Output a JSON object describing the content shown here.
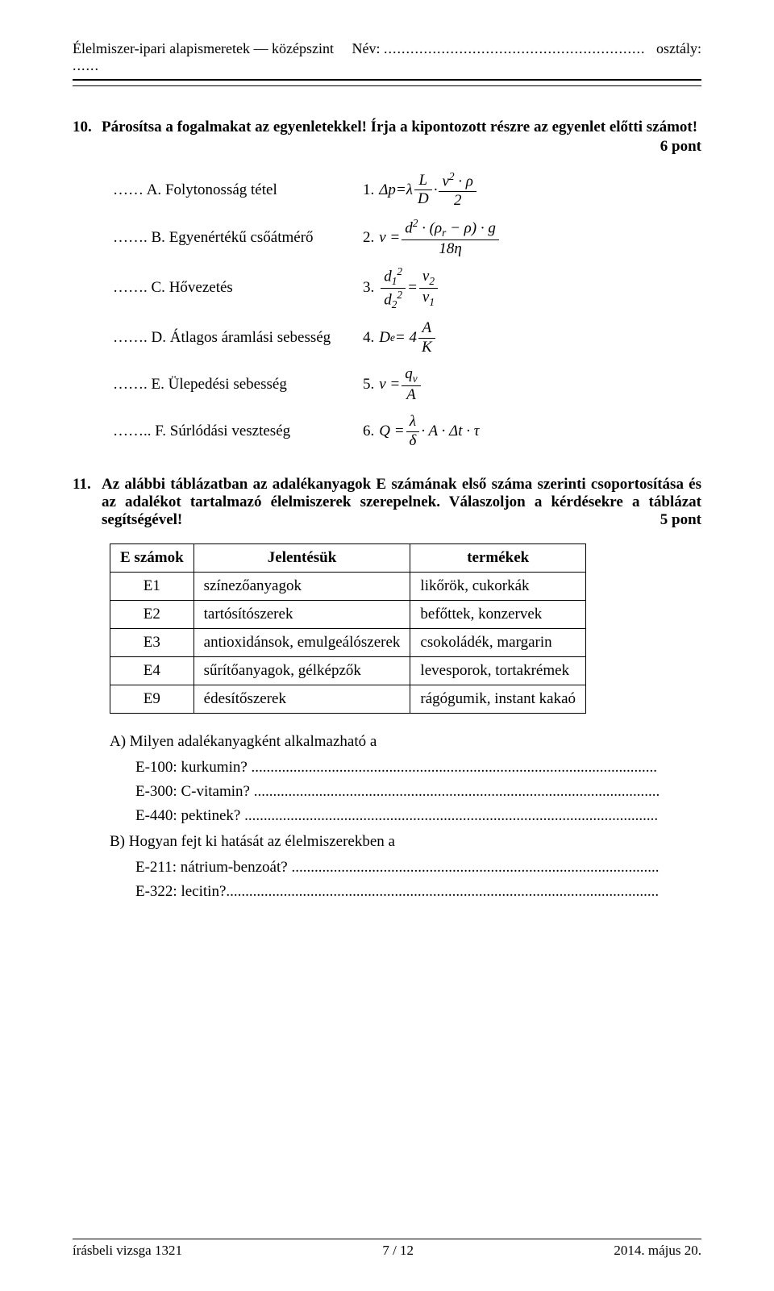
{
  "header": {
    "subject": "Élelmiszer-ipari alapismeretek — középszint",
    "name_label": "Név:",
    "name_dots": "...........................................................",
    "class_label": "osztály:",
    "class_dots": "......"
  },
  "q10": {
    "number": "10.",
    "text": "Párosítsa a fogalmakat az egyenletekkel! Írja a kipontozott részre az egyenlet előtti számot!",
    "points": "6 pont",
    "items": [
      {
        "dots": "……",
        "letter": "A.",
        "label": "Folytonosság tétel",
        "eqnum": "1."
      },
      {
        "dots": "…….",
        "letter": "B.",
        "label": "Egyenértékű csőátmérő",
        "eqnum": "2."
      },
      {
        "dots": "…….",
        "letter": "C.",
        "label": "Hővezetés",
        "eqnum": "3."
      },
      {
        "dots": "…….",
        "letter": "D.",
        "label": "Átlagos áramlási sebesség",
        "eqnum": "4."
      },
      {
        "dots": "…….",
        "letter": "E.",
        "label": "Ülepedési sebesség",
        "eqnum": "5."
      },
      {
        "dots": "……..",
        "letter": "F.",
        "label": "Súrlódási veszteség",
        "eqnum": "6."
      }
    ]
  },
  "q11": {
    "number": "11.",
    "text": "Az alábbi táblázatban az adalékanyagok E számának első száma szerinti csoportosítása és az adalékot tartalmazó élelmiszerek szerepelnek. Válaszoljon a kérdésekre a táblázat segítségével!",
    "points": "5 pont",
    "table": {
      "headers": [
        "E számok",
        "Jelentésük",
        "termékek"
      ],
      "rows": [
        [
          "E1",
          "színezőanyagok",
          "likőrök, cukorkák"
        ],
        [
          "E2",
          "tartósítószerek",
          "befőttek, konzervek"
        ],
        [
          "E3",
          "antioxidánsok, emulgeálószerek",
          "csokoládék, margarin"
        ],
        [
          "E4",
          "sűrítőanyagok, gélképzők",
          "levesporok, tortakrémek"
        ],
        [
          "E9",
          "édesítőszerek",
          "rágógumik, instant kakaó"
        ]
      ]
    },
    "partA": {
      "prompt": "A) Milyen adalékanyagként alkalmazható a",
      "lines": [
        "E-100: kurkumin? ..........................................................................................................",
        "E-300: C-vitamin? ..........................................................................................................",
        "E-440: pektinek? ............................................................................................................"
      ]
    },
    "partB": {
      "prompt": "B) Hogyan fejt ki hatását az élelmiszerekben a",
      "lines": [
        "E-211: nátrium-benzoát? ................................................................................................",
        "E-322: lecitin?................................................................................................................."
      ]
    }
  },
  "footer": {
    "left": "írásbeli vizsga 1321",
    "center": "7 / 12",
    "right": "2014. május 20."
  }
}
